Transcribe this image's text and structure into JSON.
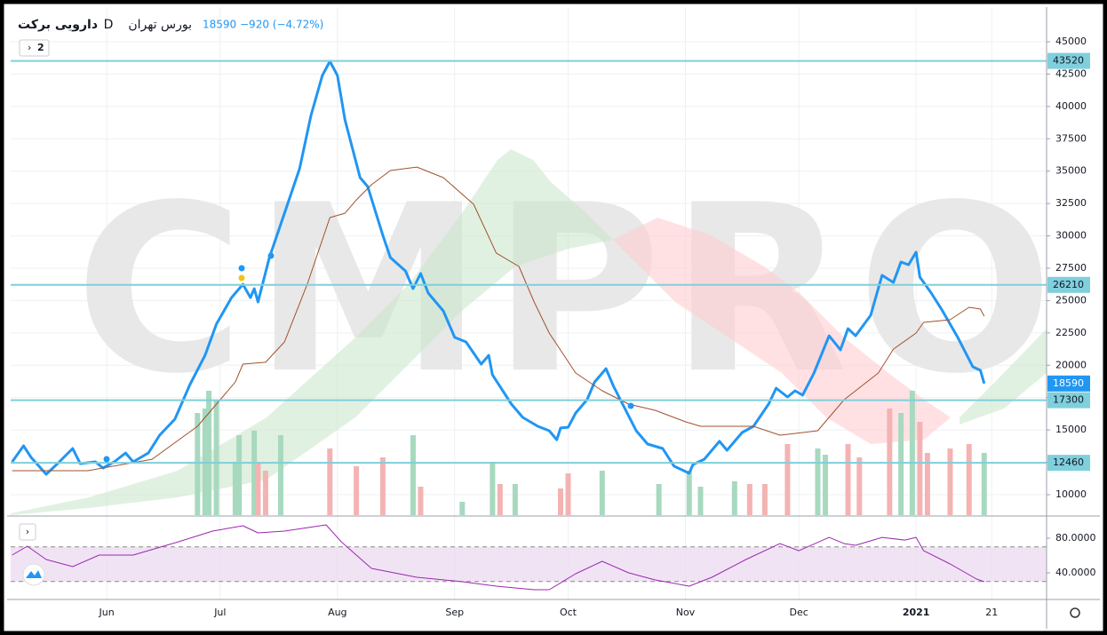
{
  "header": {
    "name": "دارویی برکت",
    "interval": "D",
    "exchange": "بورس تهران",
    "last": 18590,
    "change": "−920 (−4.72%)"
  },
  "watermark": "CMPRO",
  "indicator_count": "2",
  "chart_data": [
    {
      "type": "line",
      "xlim": [
        127.6,
        401.5
      ],
      "xticks": [
        {
          "value": 153,
          "label": "Jun"
        },
        {
          "value": 183,
          "label": "Jul"
        },
        {
          "value": 214,
          "label": "Aug"
        },
        {
          "value": 245,
          "label": "Sep"
        },
        {
          "value": 275,
          "label": "Oct"
        },
        {
          "value": 306,
          "label": "Nov"
        },
        {
          "value": 336,
          "label": "Dec"
        },
        {
          "value": 367,
          "label": "2021"
        },
        {
          "value": 387,
          "label": "21"
        }
      ],
      "ylim": [
        8420,
        47540
      ],
      "yticks": [
        10000,
        12500,
        15000,
        17500,
        20000,
        22500,
        25000,
        27500,
        30000,
        32500,
        35000,
        37500,
        40000,
        42500,
        45000
      ],
      "grid": true,
      "last": 18590,
      "hlines": [
        43520,
        26210,
        17300,
        12460
      ],
      "hline_color": "#7fcfdd",
      "series": [
        {
          "color": "#2196f3",
          "width": 3,
          "x": [
            128,
            131,
            133,
            137,
            140,
            144,
            146,
            150,
            152,
            155,
            158,
            160,
            164,
            167,
            171,
            175,
            179,
            182,
            186,
            189,
            191,
            192,
            193,
            196,
            200,
            204,
            207,
            210,
            212,
            214,
            216,
            220,
            222,
            226,
            228,
            232,
            234,
            236,
            238,
            242,
            245,
            248,
            252,
            254,
            255,
            260,
            263,
            267,
            270,
            272,
            273,
            275,
            277,
            280,
            282,
            285,
            287,
            290,
            293,
            296,
            300,
            303,
            307,
            308,
            311,
            315,
            317,
            321,
            324,
            328,
            330,
            333,
            335,
            337,
            340,
            344,
            347,
            349,
            351,
            355,
            358,
            361,
            363,
            365,
            367,
            368,
            371,
            374,
            378,
            382,
            384,
            385
          ],
          "values": [
            12540,
            13770,
            12880,
            11580,
            12400,
            13570,
            12400,
            12540,
            12060,
            12540,
            13220,
            12540,
            13220,
            14600,
            15830,
            18510,
            20770,
            23180,
            25230,
            26260,
            25230,
            25920,
            24890,
            28320,
            31750,
            35190,
            39300,
            42390,
            43490,
            42390,
            38960,
            34500,
            33810,
            30040,
            28320,
            27290,
            25920,
            27090,
            25580,
            24200,
            22150,
            21800,
            20090,
            20770,
            19260,
            17000,
            15970,
            15280,
            14940,
            14250,
            15150,
            15210,
            16310,
            17340,
            18710,
            19740,
            18370,
            16660,
            14940,
            13910,
            13570,
            12200,
            11650,
            12330,
            12740,
            14120,
            13430,
            14800,
            15280,
            17000,
            18230,
            17550,
            18030,
            17690,
            19400,
            22280,
            21190,
            22830,
            22280,
            23860,
            26950,
            26400,
            27980,
            27770,
            28740,
            26810,
            25580,
            24200,
            22150,
            19880,
            19610,
            18590
          ]
        },
        {
          "color": "#a0522d",
          "width": 1,
          "x": [
            128,
            148,
            165,
            177,
            187,
            189,
            195,
            200,
            206,
            212,
            216,
            219,
            223,
            228,
            235,
            242,
            250,
            256,
            262,
            266,
            270,
            277,
            284,
            291,
            298,
            306,
            310,
            324,
            331,
            341,
            348,
            357,
            361,
            367,
            369,
            376,
            381,
            384,
            385
          ],
          "values": [
            11850,
            11850,
            12740,
            15280,
            18710,
            20090,
            20230,
            21800,
            26260,
            31410,
            31750,
            32780,
            33950,
            35050,
            35320,
            34500,
            32440,
            28670,
            27640,
            24890,
            22490,
            19400,
            18030,
            17000,
            16520,
            15630,
            15280,
            15280,
            14600,
            14940,
            17340,
            19400,
            21250,
            22490,
            23310,
            23520,
            24480,
            24340,
            23790
          ]
        }
      ],
      "volume": {
        "up_color": "#a7d9bf",
        "down_color": "#f4b3b3",
        "x": [
          177,
          179,
          180,
          182,
          187,
          188,
          192,
          193,
          195,
          199,
          212,
          219,
          226,
          234,
          236,
          247,
          255,
          257,
          261,
          273,
          275,
          284,
          299,
          307,
          310,
          319,
          323,
          327,
          333,
          341,
          343,
          349,
          352,
          360,
          363,
          366,
          368,
          370,
          376,
          381,
          385
        ],
        "values": [
          115,
          120,
          140,
          130,
          60,
          90,
          95,
          60,
          50,
          90,
          75,
          55,
          65,
          90,
          32,
          15,
          60,
          35,
          35,
          30,
          47,
          50,
          35,
          50,
          32,
          38,
          35,
          35,
          80,
          75,
          68,
          80,
          65,
          120,
          115,
          140,
          105,
          70,
          75,
          80,
          70
        ],
        "up": [
          true,
          true,
          true,
          true,
          true,
          true,
          true,
          false,
          false,
          true,
          false,
          false,
          false,
          true,
          false,
          true,
          true,
          false,
          true,
          false,
          false,
          true,
          true,
          true,
          true,
          true,
          false,
          false,
          false,
          true,
          true,
          false,
          false,
          false,
          true,
          true,
          false,
          false,
          false,
          false,
          true
        ]
      }
    },
    {
      "type": "line",
      "ylim": [
        12.3,
        98.5
      ],
      "yticks": [
        {
          "value": 80,
          "label": "80.0000"
        },
        {
          "value": 40,
          "label": "40.0000"
        }
      ],
      "levels": [
        70,
        30
      ],
      "band_color": "#ead9f0",
      "series": [
        {
          "color": "#9c27b0",
          "width": 1,
          "x": [
            128,
            132,
            137,
            144,
            151,
            160,
            172,
            181,
            189,
            193,
            200,
            211,
            215,
            223,
            235,
            247,
            256,
            266,
            270,
            277,
            284,
            291,
            298,
            307,
            313,
            322,
            331,
            336,
            344,
            348,
            351,
            358,
            364,
            367,
            369,
            376,
            383,
            385
          ],
          "values": [
            60.5,
            70.8,
            55.4,
            47.2,
            60.5,
            60.5,
            75.9,
            88.2,
            94.4,
            86.2,
            88.2,
            95.4,
            75.9,
            45.1,
            34.9,
            29.7,
            24.6,
            20.5,
            20.5,
            39,
            53.3,
            40,
            31.8,
            24.6,
            34.9,
            55.4,
            73.8,
            65.6,
            81,
            73.8,
            71.8,
            81,
            77.9,
            81,
            65.6,
            50.3,
            32.8,
            29.7
          ]
        }
      ]
    }
  ]
}
